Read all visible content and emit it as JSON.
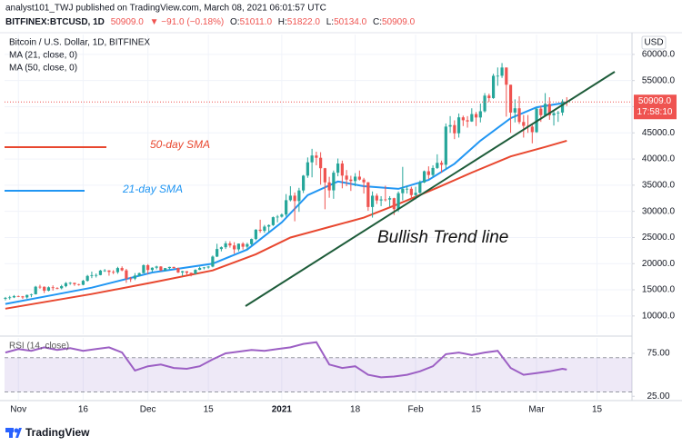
{
  "header": {
    "line1": "analyst101_TWJ published on TradingView.com, March 08, 2021 06:01:57 UTC",
    "symbol": "BITFINEX:BTCUSD, 1D",
    "last": "50909.0",
    "change": "▼ −91.0 (−0.18%)",
    "ohlc": [
      {
        "key": "O:",
        "value": "51011.0"
      },
      {
        "key": "H:",
        "value": "51822.0"
      },
      {
        "key": "L:",
        "value": "50134.0"
      },
      {
        "key": "C:",
        "value": "50909.0"
      }
    ]
  },
  "footer": {
    "brand": "TradingView"
  },
  "chart_data": [
    {
      "type": "candlestick",
      "title": "Bitcoin / U.S. Dollar, 1D, BITFINEX",
      "currency": "USD",
      "up_color": "#26a69a",
      "down_color": "#ef5350",
      "grid": true,
      "xlim": [
        -0.2,
        145.1
      ],
      "ylim": [
        6500,
        63800
      ],
      "xticks": [
        {
          "value": 3,
          "label": "Nov"
        },
        {
          "value": 18,
          "label": "16"
        },
        {
          "value": 33,
          "label": "Dec"
        },
        {
          "value": 47,
          "label": "15"
        },
        {
          "value": 64,
          "label": "2021"
        },
        {
          "value": 81,
          "label": "18"
        },
        {
          "value": 95,
          "label": "Feb"
        },
        {
          "value": 109,
          "label": "15"
        },
        {
          "value": 123,
          "label": "Mar"
        },
        {
          "value": 137,
          "label": "15"
        }
      ],
      "yticks": [
        {
          "value": 10000,
          "label": "10000.0"
        },
        {
          "value": 15000,
          "label": "15000.0"
        },
        {
          "value": 20000,
          "label": "20000.0"
        },
        {
          "value": 25000,
          "label": "25000.0"
        },
        {
          "value": 30000,
          "label": "30000.0"
        },
        {
          "value": 35000,
          "label": "35000.0"
        },
        {
          "value": 40000,
          "label": "40000.0"
        },
        {
          "value": 45000,
          "label": "45000.0"
        },
        {
          "value": 50000,
          "label": "50000.0"
        },
        {
          "value": 55000,
          "label": "55000.0"
        },
        {
          "value": 60000,
          "label": "60000.0"
        }
      ],
      "last_price": {
        "value": 50909,
        "label": "50909.0",
        "countdown": "17:58:10",
        "color": "#ef5350"
      },
      "open": [
        13280,
        13460,
        13560,
        13800,
        13750,
        13550,
        14020,
        14150,
        15590,
        15580,
        14830,
        15480,
        15330,
        15300,
        15700,
        16280,
        16330,
        16070,
        15960,
        16720,
        17650,
        17800,
        17820,
        18680,
        18700,
        18420,
        18370,
        19160,
        18720,
        17150,
        17140,
        17720,
        18180,
        19700,
        18790,
        19220,
        19450,
        18700,
        19150,
        19370,
        19170,
        18320,
        18550,
        18250,
        18040,
        18810,
        19170,
        19270,
        19440,
        21350,
        22800,
        23140,
        23870,
        23480,
        22740,
        23820,
        23240,
        23730,
        24710,
        26490,
        26280,
        27080,
        27370,
        28880,
        28980,
        29380,
        32130,
        33000,
        31970,
        33990,
        36820,
        39370,
        40670,
        40240,
        38240,
        35540,
        34010,
        37390,
        39140,
        36830,
        36070,
        35790,
        36630,
        36070,
        35550,
        30830,
        32990,
        32080,
        32280,
        32250,
        32510,
        30430,
        33470,
        34320,
        34320,
        33110,
        33540,
        35510,
        37660,
        36950,
        38290,
        39270,
        38900,
        46200,
        46480,
        44920,
        47970,
        47410,
        47180,
        48590,
        47940,
        49130,
        52120,
        51650,
        55910,
        55920,
        57490,
        54200,
        48880,
        49700,
        47080,
        46340,
        46190,
        45140,
        49630,
        48380,
        50540,
        48370,
        48760,
        48880,
        51011
      ],
      "high": [
        13640,
        13850,
        14000,
        13900,
        13820,
        14080,
        14250,
        15750,
        15960,
        15650,
        15650,
        15850,
        15500,
        15950,
        16480,
        16480,
        16350,
        16150,
        16900,
        17850,
        18480,
        18120,
        18800,
        18970,
        18750,
        18750,
        19400,
        19480,
        19000,
        17470,
        18200,
        18300,
        19860,
        19920,
        19300,
        19600,
        19520,
        19180,
        19420,
        19420,
        19250,
        18630,
        18550,
        18280,
        18930,
        19400,
        19360,
        19550,
        21560,
        23800,
        23290,
        24300,
        24280,
        24100,
        23850,
        24100,
        24000,
        24800,
        26600,
        28400,
        27400,
        27500,
        29000,
        29300,
        29600,
        33300,
        34800,
        33600,
        34500,
        36950,
        40300,
        41950,
        41400,
        41300,
        38300,
        36600,
        37800,
        40100,
        39700,
        37900,
        36800,
        37300,
        37800,
        36400,
        35600,
        33800,
        33400,
        32900,
        34900,
        32900,
        32600,
        33800,
        38500,
        34900,
        34700,
        34700,
        35900,
        37800,
        38600,
        38800,
        40900,
        39700,
        46800,
        48200,
        47400,
        48700,
        48300,
        48200,
        49700,
        49000,
        50600,
        52600,
        52500,
        56300,
        57500,
        58350,
        57500,
        54200,
        51400,
        52000,
        48400,
        48400,
        46700,
        49800,
        50200,
        52600,
        51800,
        49400,
        49200,
        51400,
        51822
      ],
      "low": [
        12980,
        13130,
        13420,
        13600,
        13250,
        13310,
        13580,
        14100,
        15200,
        14380,
        14700,
        14850,
        15100,
        15100,
        15480,
        15950,
        15750,
        15800,
        15870,
        16560,
        17230,
        17350,
        17770,
        18430,
        17700,
        18000,
        18060,
        18550,
        16330,
        16500,
        16850,
        17550,
        18180,
        18000,
        18420,
        18900,
        18580,
        18570,
        18900,
        19000,
        18200,
        17650,
        17900,
        17570,
        18020,
        18760,
        18900,
        19050,
        19300,
        21250,
        22350,
        22800,
        23060,
        21900,
        22350,
        22700,
        22700,
        23450,
        24500,
        25900,
        25900,
        25950,
        27200,
        27900,
        28800,
        29000,
        31900,
        28100,
        29900,
        33500,
        36400,
        36500,
        38800,
        35100,
        30400,
        32600,
        32400,
        36700,
        34400,
        34800,
        33900,
        34800,
        35900,
        33400,
        30100,
        28800,
        31400,
        31000,
        31900,
        30900,
        29300,
        29900,
        32100,
        33400,
        32300,
        32300,
        33400,
        35400,
        36200,
        36600,
        38100,
        37400,
        38000,
        45000,
        43800,
        44100,
        46300,
        46000,
        47100,
        46300,
        47000,
        48900,
        50900,
        51500,
        54000,
        55500,
        48100,
        45000,
        47000,
        46700,
        44100,
        45000,
        43000,
        45000,
        47100,
        48100,
        47500,
        46400,
        47100,
        48300,
        50134
      ],
      "close": [
        13460,
        13560,
        13800,
        13750,
        13550,
        14020,
        14150,
        15590,
        15580,
        14830,
        15480,
        15330,
        15300,
        15700,
        16280,
        16330,
        16070,
        15960,
        16720,
        17650,
        17800,
        17820,
        18680,
        18700,
        18420,
        18370,
        19160,
        18720,
        17150,
        17140,
        17720,
        18180,
        19700,
        18790,
        19220,
        19450,
        18700,
        19150,
        19370,
        19170,
        18320,
        18550,
        18250,
        18040,
        18810,
        19170,
        19270,
        19440,
        21350,
        22800,
        23140,
        23870,
        23480,
        22740,
        23820,
        23240,
        23730,
        24710,
        26490,
        26280,
        27080,
        27370,
        28880,
        28980,
        29380,
        32130,
        33000,
        31970,
        33990,
        36820,
        39370,
        40670,
        40240,
        38240,
        35540,
        34010,
        37390,
        39140,
        36830,
        36070,
        35790,
        36630,
        36070,
        35550,
        30830,
        32990,
        32080,
        32280,
        32250,
        32510,
        30430,
        33470,
        34320,
        34320,
        33110,
        33540,
        35510,
        37660,
        36950,
        38290,
        39270,
        38900,
        46200,
        46480,
        44920,
        47970,
        47410,
        47180,
        48590,
        47940,
        49130,
        52120,
        51650,
        55910,
        55920,
        57490,
        54200,
        48880,
        49700,
        47080,
        46340,
        46190,
        45140,
        49630,
        48380,
        50540,
        48370,
        48760,
        48880,
        51011,
        50909
      ],
      "series": [
        {
          "name": "MA (21, close, 0)",
          "color": "#2196f3",
          "x": [
            0,
            11,
            20,
            34,
            48,
            56,
            64,
            70,
            77,
            83,
            91,
            98,
            104,
            110,
            117,
            123,
            130
          ],
          "values": [
            12300,
            14000,
            15400,
            18300,
            20000,
            22700,
            27900,
            33100,
            35700,
            34800,
            34300,
            36000,
            39100,
            43500,
            47800,
            49900,
            50800
          ]
        },
        {
          "name": "MA (50, close, 0)",
          "color": "#e8472f",
          "x": [
            0,
            20,
            34,
            48,
            58,
            66,
            75,
            83,
            91,
            100,
            108,
            117,
            125,
            130
          ],
          "values": [
            11400,
            14200,
            16400,
            18700,
            21800,
            25000,
            27000,
            28800,
            31400,
            34500,
            37400,
            40500,
            42300,
            43500
          ]
        }
      ],
      "annotations": [
        "50-day SMA",
        "21-day SMA",
        "Bullish Trend line"
      ]
    },
    {
      "type": "line",
      "title": "RSI (14, close)",
      "grid": true,
      "band": [
        30,
        70
      ],
      "band_color": "#7e57c2",
      "ylim": [
        21,
        93
      ],
      "yticks": [
        {
          "value": 75,
          "label": "75.00"
        },
        {
          "value": 25,
          "label": "25.00"
        }
      ],
      "series": [
        {
          "color": "#9c5fc4",
          "x": [
            0,
            3,
            6,
            9,
            12,
            15,
            18,
            21,
            24,
            27,
            30,
            33,
            36,
            39,
            42,
            45,
            48,
            51,
            54,
            57,
            60,
            63,
            66,
            69,
            72,
            75,
            78,
            81,
            84,
            87,
            90,
            93,
            96,
            99,
            102,
            105,
            108,
            111,
            114,
            117,
            120,
            123,
            126,
            129,
            130
          ],
          "values": [
            76,
            80,
            78,
            82,
            79,
            81,
            78,
            80,
            82,
            76,
            55,
            60,
            62,
            58,
            57,
            60,
            68,
            75,
            77,
            79,
            78,
            80,
            82,
            86,
            88,
            62,
            58,
            60,
            50,
            47,
            48,
            50,
            54,
            60,
            74,
            76,
            73,
            76,
            78,
            58,
            50,
            52,
            54,
            57,
            56
          ]
        }
      ]
    }
  ]
}
